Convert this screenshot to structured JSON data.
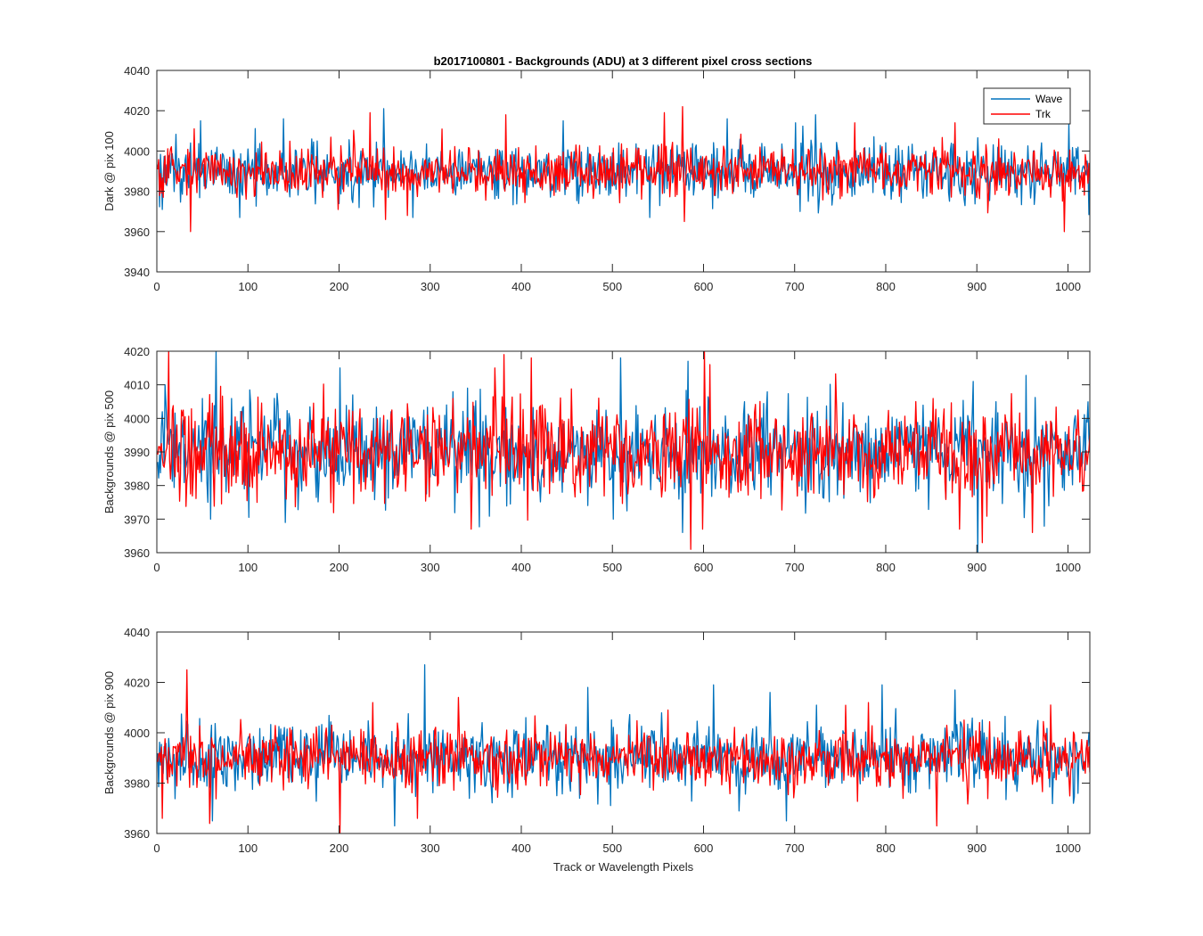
{
  "figure": {
    "title": "b2017100801 - Backgrounds (ADU) at 3 different pixel cross sections",
    "colors": {
      "Wave": "#0072BD",
      "Trk": "#FF0000",
      "axes": "#262626",
      "background": "#ffffff"
    }
  },
  "chart_data": [
    {
      "type": "line",
      "title": "b2017100801 - Backgrounds (ADU) at 3 different pixel cross sections",
      "xlabel": "",
      "ylabel": "Dark @ pix 100",
      "xlim": [
        0,
        1024
      ],
      "ylim": [
        3940,
        4040
      ],
      "xticks": [
        0,
        100,
        200,
        300,
        400,
        500,
        600,
        700,
        800,
        900,
        1000
      ],
      "yticks": [
        3940,
        3960,
        3980,
        4000,
        4020,
        4040
      ],
      "grid": false,
      "legend": {
        "placement": "top-right",
        "entries": [
          "Wave",
          "Trk"
        ]
      },
      "series": [
        {
          "name": "Wave",
          "color": "#0072BD",
          "n_points": 1024,
          "mean": 3990,
          "std": 7,
          "min": 3967,
          "max": 4021,
          "peaks": [
            [
              47,
              4015
            ],
            [
              138,
              4016
            ],
            [
              248,
              4021
            ],
            [
              445,
              4015
            ],
            [
              625,
              4016
            ],
            [
              700,
              4014
            ],
            [
              722,
              4018
            ],
            [
              1000,
              4014
            ]
          ],
          "dips": [
            [
              5,
              3971
            ],
            [
              90,
              3967
            ],
            [
              280,
              3967
            ],
            [
              540,
              3967
            ],
            [
              705,
              3970
            ]
          ]
        },
        {
          "name": "Trk",
          "color": "#FF0000",
          "n_points": 1024,
          "mean": 3990,
          "std": 6,
          "min": 3960,
          "max": 4022,
          "peaks": [
            [
              40,
              4011
            ],
            [
              233,
              4019
            ],
            [
              382,
              4018
            ],
            [
              556,
              4019
            ],
            [
              576,
              4022
            ],
            [
              765,
              4014
            ],
            [
              875,
              4014
            ]
          ],
          "dips": [
            [
              36,
              3960
            ],
            [
              198,
              3971
            ],
            [
              250,
              3966
            ],
            [
              578,
              3965
            ],
            [
              995,
              3960
            ]
          ]
        }
      ]
    },
    {
      "type": "line",
      "title": "",
      "xlabel": "",
      "ylabel": "Backgrounds @ pix 500",
      "xlim": [
        0,
        1024
      ],
      "ylim": [
        3960,
        4020
      ],
      "xticks": [
        0,
        100,
        200,
        300,
        400,
        500,
        600,
        700,
        800,
        900,
        1000
      ],
      "yticks": [
        3960,
        3970,
        3980,
        3990,
        4000,
        4010,
        4020
      ],
      "grid": false,
      "legend": null,
      "series": [
        {
          "name": "Wave",
          "color": "#0072BD",
          "n_points": 1024,
          "mean": 3990,
          "std": 7,
          "min": 3960,
          "max": 4020,
          "peaks": [
            [
              8,
              4010
            ],
            [
              64,
              4020
            ],
            [
              200,
              4015
            ],
            [
              340,
              4009
            ],
            [
              508,
              4018
            ],
            [
              582,
              4017
            ],
            [
              895,
              4011
            ]
          ],
          "dips": [
            [
              58,
              3970
            ],
            [
              140,
              3969
            ],
            [
              500,
              3970
            ],
            [
              576,
              3966
            ],
            [
              900,
              3960
            ]
          ]
        },
        {
          "name": "Trk",
          "color": "#FF0000",
          "n_points": 1024,
          "mean": 3990,
          "std": 7,
          "min": 3961,
          "max": 4020,
          "peaks": [
            [
              12,
              4020
            ],
            [
              370,
              4015
            ],
            [
              380,
              4019
            ],
            [
              410,
              4018
            ],
            [
              600,
              4020
            ],
            [
              606,
              4016
            ]
          ],
          "dips": [
            [
              344,
              3967
            ],
            [
              585,
              3961
            ],
            [
              598,
              3967
            ],
            [
              880,
              3967
            ],
            [
              905,
              3963
            ],
            [
              960,
              3966
            ]
          ]
        }
      ]
    },
    {
      "type": "line",
      "title": "",
      "xlabel": "Track or Wavelength Pixels",
      "ylabel": "Backgrounds @ pix 900",
      "xlim": [
        0,
        1024
      ],
      "ylim": [
        3960,
        4040
      ],
      "xticks": [
        0,
        100,
        200,
        300,
        400,
        500,
        600,
        700,
        800,
        900,
        1000
      ],
      "yticks": [
        3960,
        3980,
        4000,
        4020,
        4040
      ],
      "grid": false,
      "legend": null,
      "series": [
        {
          "name": "Wave",
          "color": "#0072BD",
          "n_points": 1024,
          "mean": 3990,
          "std": 7,
          "min": 3963,
          "max": 4027,
          "peaks": [
            [
              293,
              4027
            ],
            [
              472,
              4018
            ],
            [
              610,
              4019
            ],
            [
              672,
              4016
            ],
            [
              795,
              4019
            ],
            [
              875,
              4017
            ]
          ],
          "dips": [
            [
              60,
              3965
            ],
            [
              260,
              3963
            ],
            [
              690,
              3965
            ],
            [
              1005,
              3972
            ]
          ]
        },
        {
          "name": "Trk",
          "color": "#FF0000",
          "n_points": 1024,
          "mean": 3990,
          "std": 6,
          "min": 3960,
          "max": 4025,
          "peaks": [
            [
              32,
              4025
            ],
            [
              236,
              4012
            ],
            [
              330,
              4014
            ],
            [
              560,
              4009
            ],
            [
              780,
              4012
            ],
            [
              980,
              4011
            ]
          ],
          "dips": [
            [
              5,
              3966
            ],
            [
              57,
              3964
            ],
            [
              200,
              3960
            ],
            [
              285,
              3966
            ],
            [
              855,
              3963
            ]
          ]
        }
      ]
    }
  ]
}
